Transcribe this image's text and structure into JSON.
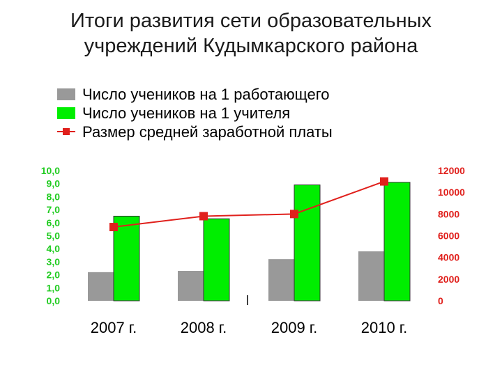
{
  "chart_data": {
    "type": "bar",
    "title_lines": [
      "Итоги развития сети образовательных",
      "учреждений Кудымкарского района"
    ],
    "categories": [
      "2007 г.",
      "2008 г.",
      "2009 г.",
      "2010 г."
    ],
    "legend_placement": "top-left",
    "grid": false,
    "series": [
      {
        "name": "Число учеников на 1 работающего",
        "type": "bar",
        "axis": "left",
        "color": "#999999",
        "values": [
          2.2,
          2.3,
          3.2,
          3.8
        ]
      },
      {
        "name": "Число учеников на 1 учителя",
        "type": "bar",
        "axis": "left",
        "color": "#00ee00",
        "values": [
          6.5,
          6.3,
          8.9,
          9.1
        ]
      },
      {
        "name": "Размер средней заработной платы",
        "type": "line",
        "axis": "right",
        "color": "#e0201c",
        "values": [
          6800,
          7800,
          8000,
          11000
        ]
      }
    ],
    "y_left": {
      "ylim": [
        0,
        10
      ],
      "ticks": [
        "10,0",
        "9,0",
        "8,0",
        "7,0",
        "6,0",
        "5,0",
        "4,0",
        "3,0",
        "2,0",
        "1,0",
        "0,0"
      ],
      "color": "#22cc22"
    },
    "y_right": {
      "ylim": [
        0,
        12000
      ],
      "ticks": [
        "12000",
        "10000",
        "8000",
        "6000",
        "4000",
        "2000",
        "0"
      ],
      "color": "#e0201c"
    }
  }
}
